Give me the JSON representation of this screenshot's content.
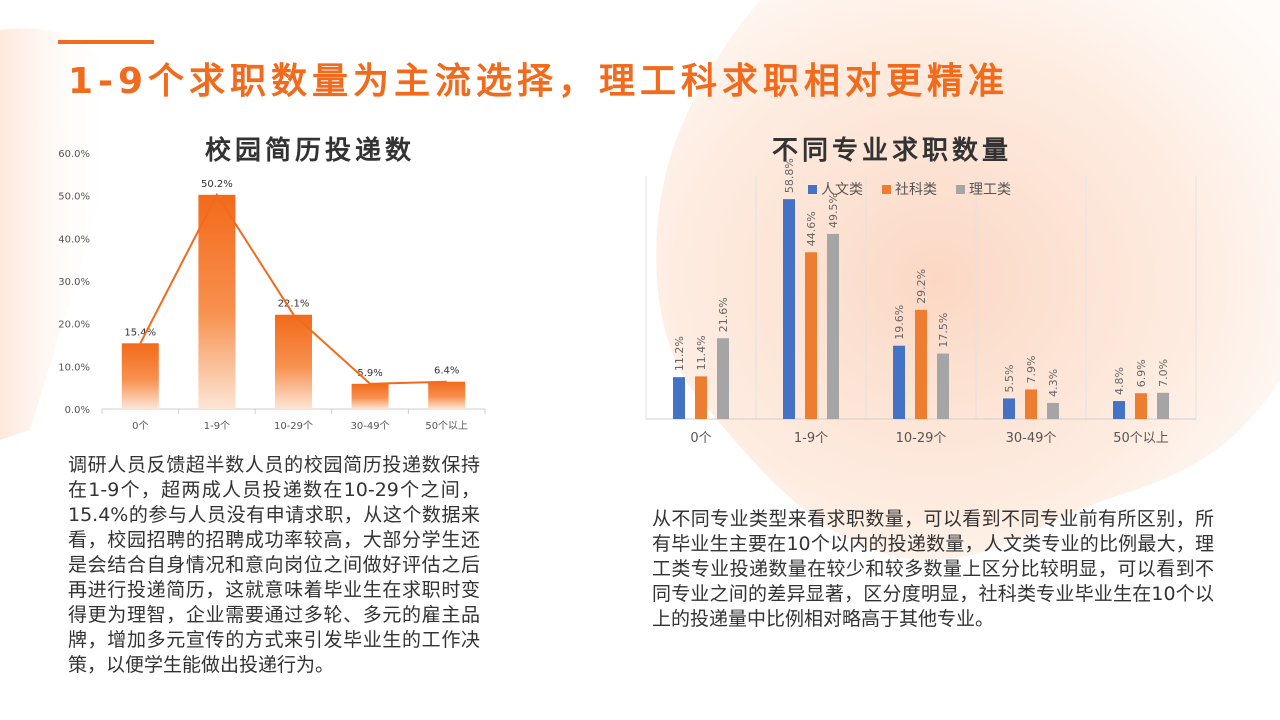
{
  "title": "1-9个求职数量为主流选择，理工科求职相对更精准",
  "left_chart": {
    "title": "校园简历投递数",
    "text": "调研人员反馈超半数人员的校园简历投递数保持在1-9个，超两成人员投递数在10-29个之间，15.4%的参与人员没有申请求职，从这个数据来看，校园招聘的招聘成功率较高，大部分学生还是会结合自身情况和意向岗位之间做好评估之后再进行投递简历，这就意味着毕业生在求职时变得更为理智，企业需要通过多轮、多元的雇主品牌，增加多元宣传的方式来引发毕业生的工作决策，以便学生能做出投递行为。"
  },
  "right_chart": {
    "title": "不同专业求职数量",
    "text": "从不同专业类型来看求职数量，可以看到不同专业前有所区别，所有毕业生主要在10个以内的投递数量，人文类专业的比例最大，理工类专业投递数量在较少和较多数量上区分比较明显，可以看到不同专业之间的差异显著，区分度明显，社科类专业毕业生在10个以上的投递量中比例相对略高于其他专业。"
  },
  "chart_data": [
    {
      "type": "bar",
      "title": "校园简历投递数",
      "categories": [
        "0个",
        "1-9个",
        "10-29个",
        "30-49个",
        "50个以上"
      ],
      "values": [
        15.4,
        50.2,
        22.1,
        5.9,
        6.4
      ],
      "value_labels": [
        "15.4%",
        "50.2%",
        "22.1%",
        "5.9%",
        "6.4%"
      ],
      "yticks": [
        "0.0%",
        "10.0%",
        "20.0%",
        "30.0%",
        "40.0%",
        "50.0%",
        "60.0%"
      ],
      "ylim": [
        0,
        60
      ],
      "overlay_line": true,
      "grid": false,
      "colors": {
        "bar": "#f26a1b",
        "line": "#f26a1b"
      }
    },
    {
      "type": "bar",
      "title": "不同专业求职数量",
      "categories": [
        "0个",
        "1-9个",
        "10-29个",
        "30-49个",
        "50个以上"
      ],
      "series": [
        {
          "name": "人文类",
          "values": [
            11.2,
            58.8,
            19.6,
            5.5,
            4.8
          ],
          "labels": [
            "11.2%",
            "58.8%",
            "19.6%",
            "5.5%",
            "4.8%"
          ],
          "color": "#4472c4"
        },
        {
          "name": "社科类",
          "values": [
            11.4,
            44.6,
            29.2,
            7.9,
            6.9
          ],
          "labels": [
            "11.4%",
            "44.6%",
            "29.2%",
            "7.9%",
            "6.9%"
          ],
          "color": "#ed7d31"
        },
        {
          "name": "理工类",
          "values": [
            21.6,
            49.5,
            17.5,
            4.3,
            7.0
          ],
          "labels": [
            "21.6%",
            "49.5%",
            "17.5%",
            "4.3%",
            "7.0%"
          ],
          "color": "#a5a5a5"
        }
      ],
      "ylim": [
        0,
        65
      ],
      "legend": "top-left",
      "grid": "vertical"
    }
  ]
}
